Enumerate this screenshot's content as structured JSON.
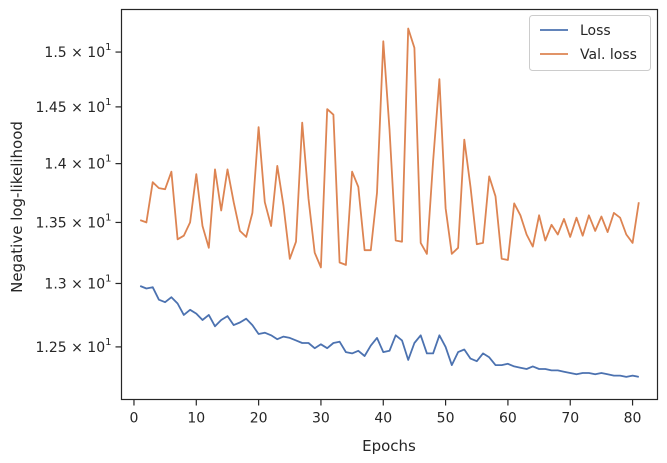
{
  "chart_data": {
    "type": "line",
    "xlabel": "Epochs",
    "ylabel": "Negative log-likelihood",
    "y_scale": "log",
    "xlim": [
      -2,
      84
    ],
    "ylim": [
      12.1,
      15.4
    ],
    "x_ticks": [
      0,
      10,
      20,
      30,
      40,
      50,
      60,
      70,
      80
    ],
    "x_tick_labels": [
      "0",
      "10",
      "20",
      "30",
      "40",
      "50",
      "60",
      "70",
      "80"
    ],
    "y_ticks": [
      12.5,
      13.0,
      13.5,
      14.0,
      14.5,
      15.0
    ],
    "y_tick_labels": [
      {
        "mantissa": "1.25",
        "sep": "×",
        "base": "10",
        "exp": "1"
      },
      {
        "mantissa": "1.3",
        "sep": "×",
        "base": "10",
        "exp": "1"
      },
      {
        "mantissa": "1.35",
        "sep": "×",
        "base": "10",
        "exp": "1"
      },
      {
        "mantissa": "1.4",
        "sep": "×",
        "base": "10",
        "exp": "1"
      },
      {
        "mantissa": "1.45",
        "sep": "×",
        "base": "10",
        "exp": "1"
      },
      {
        "mantissa": "1.5",
        "sep": "×",
        "base": "10",
        "exp": "1"
      }
    ],
    "grid": false,
    "legend_position": "top-right",
    "x": [
      1,
      2,
      3,
      4,
      5,
      6,
      7,
      8,
      9,
      10,
      11,
      12,
      13,
      14,
      15,
      16,
      17,
      18,
      19,
      20,
      21,
      22,
      23,
      24,
      25,
      26,
      27,
      28,
      29,
      30,
      31,
      32,
      33,
      34,
      35,
      36,
      37,
      38,
      39,
      40,
      41,
      42,
      43,
      44,
      45,
      46,
      47,
      48,
      49,
      50,
      51,
      52,
      53,
      54,
      55,
      56,
      57,
      58,
      59,
      60,
      61,
      62,
      63,
      64,
      65,
      66,
      67,
      68,
      69,
      70,
      71,
      72,
      73,
      74,
      75,
      76,
      77,
      78,
      79,
      80,
      81
    ],
    "series": [
      {
        "name": "Loss",
        "color": "#4c72b0",
        "values": [
          12.98,
          12.96,
          12.97,
          12.87,
          12.85,
          12.89,
          12.84,
          12.75,
          12.79,
          12.76,
          12.71,
          12.75,
          12.66,
          12.71,
          12.74,
          12.67,
          12.69,
          12.72,
          12.67,
          12.6,
          12.61,
          12.59,
          12.56,
          12.58,
          12.57,
          12.55,
          12.53,
          12.53,
          12.49,
          12.52,
          12.49,
          12.53,
          12.54,
          12.46,
          12.45,
          12.47,
          12.43,
          12.51,
          12.57,
          12.46,
          12.47,
          12.59,
          12.55,
          12.4,
          12.53,
          12.59,
          12.45,
          12.45,
          12.59,
          12.5,
          12.36,
          12.46,
          12.48,
          12.41,
          12.39,
          12.45,
          12.42,
          12.36,
          12.36,
          12.37,
          12.35,
          12.34,
          12.33,
          12.35,
          12.33,
          12.33,
          12.32,
          12.32,
          12.31,
          12.3,
          12.29,
          12.3,
          12.3,
          12.29,
          12.3,
          12.29,
          12.28,
          12.28,
          12.27,
          12.28,
          12.27
        ]
      },
      {
        "name": "Val. loss",
        "color": "#dd8452",
        "values": [
          13.52,
          13.5,
          13.84,
          13.79,
          13.78,
          13.93,
          13.36,
          13.39,
          13.5,
          13.91,
          13.47,
          13.29,
          13.95,
          13.6,
          13.95,
          13.67,
          13.43,
          13.38,
          13.58,
          14.32,
          13.67,
          13.47,
          13.98,
          13.64,
          13.2,
          13.34,
          14.36,
          13.7,
          13.25,
          13.13,
          14.48,
          14.43,
          13.17,
          13.15,
          13.93,
          13.8,
          13.27,
          13.27,
          13.75,
          15.1,
          14.3,
          13.35,
          13.34,
          15.22,
          15.04,
          13.33,
          13.24,
          14.02,
          14.75,
          13.62,
          13.24,
          13.29,
          14.21,
          13.8,
          13.32,
          13.33,
          13.89,
          13.72,
          13.2,
          13.19,
          13.66,
          13.56,
          13.4,
          13.3,
          13.56,
          13.35,
          13.48,
          13.4,
          13.53,
          13.38,
          13.54,
          13.39,
          13.56,
          13.43,
          13.55,
          13.42,
          13.58,
          13.54,
          13.4,
          13.33,
          13.67
        ]
      }
    ]
  }
}
